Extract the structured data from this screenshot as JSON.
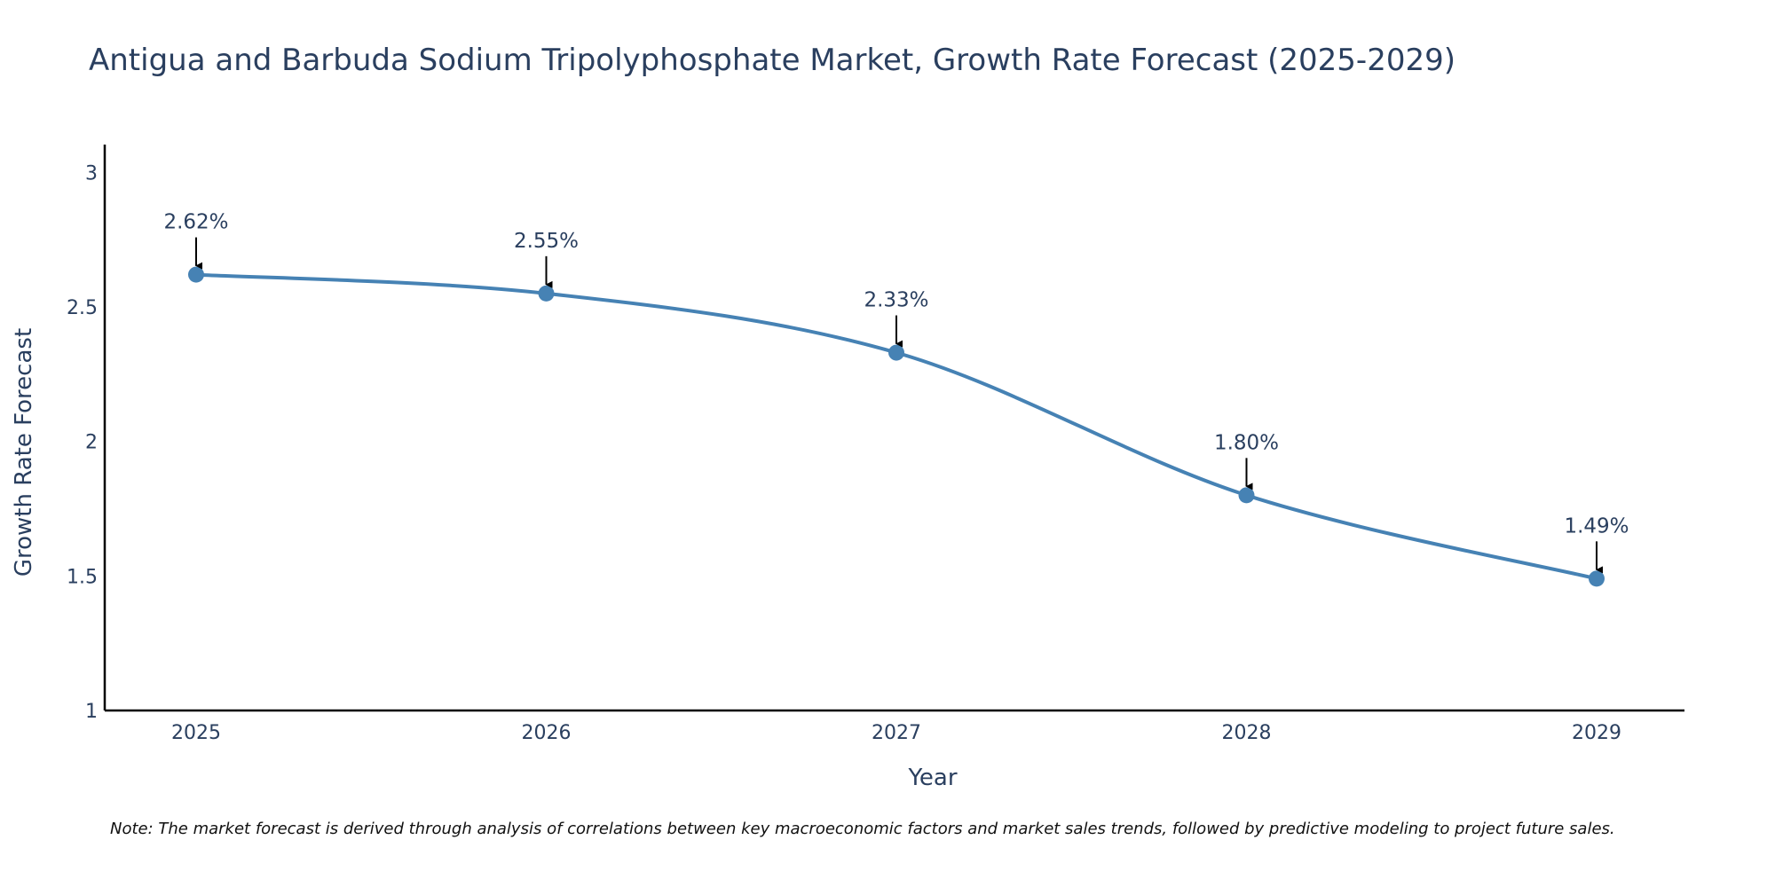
{
  "chart_data": {
    "type": "line",
    "title": "Antigua and Barbuda Sodium Tripolyphosphate Market, Growth Rate Forecast (2025-2029)",
    "xlabel": "Year",
    "ylabel": "Growth Rate Forecast",
    "categories": [
      "2025",
      "2026",
      "2027",
      "2028",
      "2029"
    ],
    "series": [
      {
        "name": "Growth Rate Forecast",
        "values": [
          2.62,
          2.55,
          2.33,
          1.8,
          1.49
        ],
        "labels": [
          "2.62%",
          "2.55%",
          "2.33%",
          "1.80%",
          "1.49%"
        ]
      }
    ],
    "ylim": [
      1,
      3.1
    ],
    "yticks": [
      1,
      1.5,
      2,
      2.5,
      3
    ],
    "ytick_labels": [
      "1",
      "1.5",
      "2",
      "2.5",
      "3"
    ],
    "grid": false,
    "line_shape": "spline",
    "note": "Note: The market forecast is derived through analysis of correlations between key macroeconomic factors and market sales trends, followed by predictive modeling to project future sales.",
    "colors": {
      "line": "#4682b4",
      "marker": "#4682b4",
      "axis": "#000000",
      "text": "#2a3f5f",
      "arrow": "#000000"
    }
  }
}
